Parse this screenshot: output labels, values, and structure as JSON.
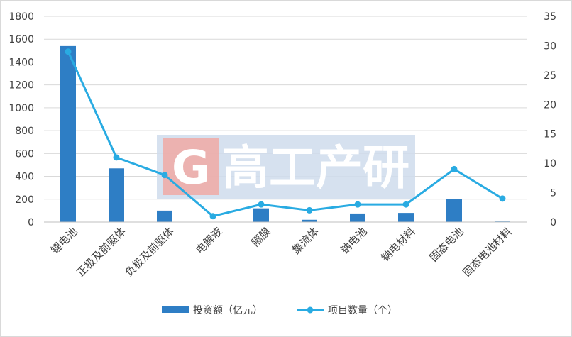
{
  "chart_data": {
    "type": "bar",
    "categories": [
      "锂电池",
      "正极及前驱体",
      "负极及前驱体",
      "电解液",
      "隔膜",
      "集流体",
      "钠电池",
      "钠电材料",
      "固态电池",
      "固态电池材料"
    ],
    "series": [
      {
        "name": "投资额（亿元）",
        "kind": "bar",
        "axis": "left",
        "color": "#2e7ec5",
        "values": [
          1540,
          470,
          100,
          0,
          120,
          20,
          75,
          80,
          200,
          5
        ]
      },
      {
        "name": "项目数量（个）",
        "kind": "line",
        "axis": "right",
        "color": "#29abe2",
        "values": [
          29,
          11,
          8,
          1,
          3,
          2,
          3,
          3,
          9,
          4
        ]
      }
    ],
    "y_left": {
      "min": 0,
      "max": 1800,
      "step": 200,
      "ticks": [
        "0",
        "200",
        "400",
        "600",
        "800",
        "1000",
        "1200",
        "1400",
        "1600",
        "1800"
      ]
    },
    "y_right": {
      "min": 0,
      "max": 35,
      "step": 5,
      "ticks": [
        "0",
        "5",
        "10",
        "15",
        "20",
        "25",
        "30",
        "35"
      ]
    },
    "grid": true,
    "legend_position": "bottom"
  },
  "watermark": {
    "logo_letter": "G",
    "text": "高工产研"
  }
}
